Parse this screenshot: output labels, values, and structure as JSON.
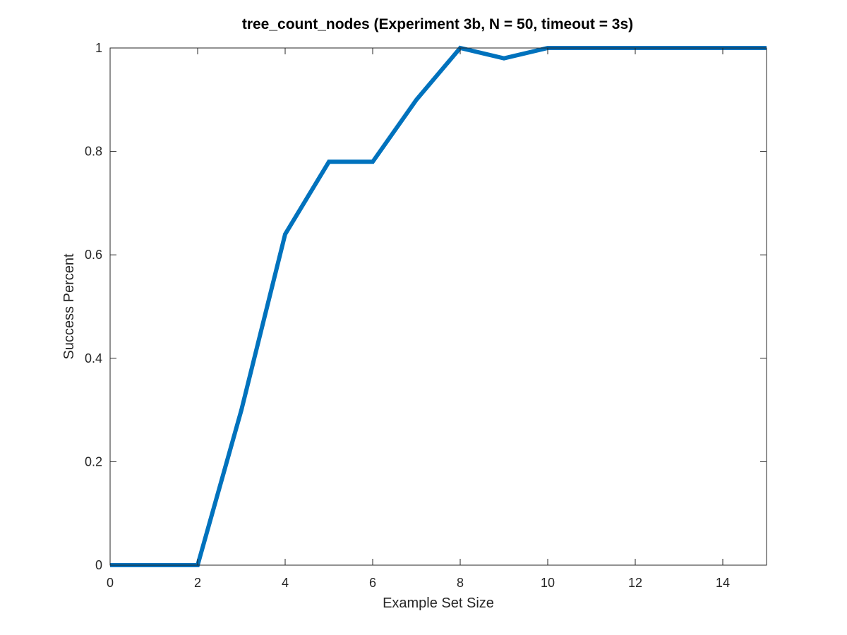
{
  "chart_data": {
    "type": "line",
    "title": "tree_count_nodes (Experiment 3b, N = 50, timeout = 3s)",
    "xlabel": "Example Set Size",
    "ylabel": "Success Percent",
    "xlim": [
      0,
      15
    ],
    "ylim": [
      0,
      1
    ],
    "xticks": [
      0,
      2,
      4,
      6,
      8,
      10,
      12,
      14
    ],
    "yticks": [
      0,
      0.2,
      0.4,
      0.6,
      0.8,
      1
    ],
    "xtick_labels": [
      "0",
      "2",
      "4",
      "6",
      "8",
      "10",
      "12",
      "14"
    ],
    "ytick_labels": [
      "0",
      "0.2",
      "0.4",
      "0.6",
      "0.8",
      "1"
    ],
    "grid": false,
    "legend": "none",
    "series": [
      {
        "color": "#0072BD",
        "x": [
          0,
          1,
          2,
          3,
          4,
          5,
          6,
          7,
          8,
          9,
          10,
          11,
          12,
          13,
          14,
          15
        ],
        "y": [
          0,
          0,
          0,
          0.3,
          0.64,
          0.78,
          0.78,
          0.9,
          1.0,
          0.98,
          1.0,
          1.0,
          1.0,
          1.0,
          1.0,
          1.0
        ]
      }
    ]
  }
}
